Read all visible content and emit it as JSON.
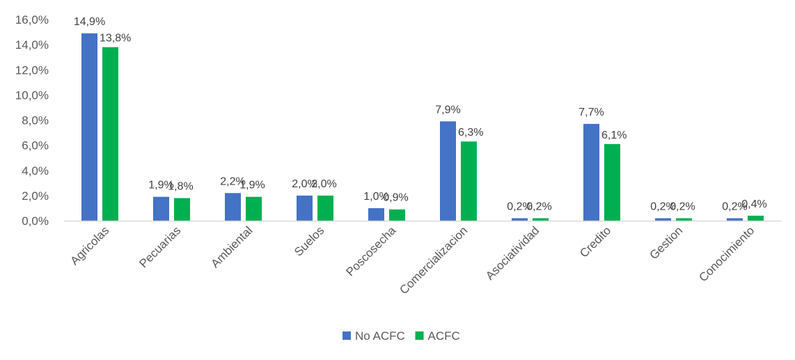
{
  "chart_data": {
    "type": "bar",
    "categories": [
      "Agricolas",
      "Pecuarias",
      "Ambiental",
      "Suelos",
      "Poscosecha",
      "Comercializacion",
      "Asociatividad",
      "Credito",
      "Gestion",
      "Conocimiento"
    ],
    "series": [
      {
        "name": "No ACFC",
        "color": "#4472C4",
        "values": [
          14.9,
          1.9,
          2.2,
          2.0,
          1.0,
          7.9,
          0.2,
          7.7,
          0.2,
          0.2
        ],
        "labels": [
          "14,9%",
          "1,9%",
          "2,2%",
          "2,0%",
          "1,0%",
          "7,9%",
          "0,2%",
          "7,7%",
          "0,2%",
          "0,2%"
        ]
      },
      {
        "name": "ACFC",
        "color": "#00B050",
        "values": [
          13.8,
          1.8,
          1.9,
          2.0,
          0.9,
          6.3,
          0.2,
          6.1,
          0.2,
          0.4
        ],
        "labels": [
          "13,8%",
          "1,8%",
          "1,9%",
          "2,0%",
          "0,9%",
          "6,3%",
          "0,2%",
          "6,1%",
          "0,2%",
          "0,4%"
        ]
      }
    ],
    "y_ticks": [
      "0,0%",
      "2,0%",
      "4,0%",
      "6,0%",
      "8,0%",
      "10,0%",
      "12,0%",
      "14,0%",
      "16,0%"
    ],
    "ylim": [
      0,
      16
    ],
    "grid": false,
    "legend_position": "bottom"
  }
}
